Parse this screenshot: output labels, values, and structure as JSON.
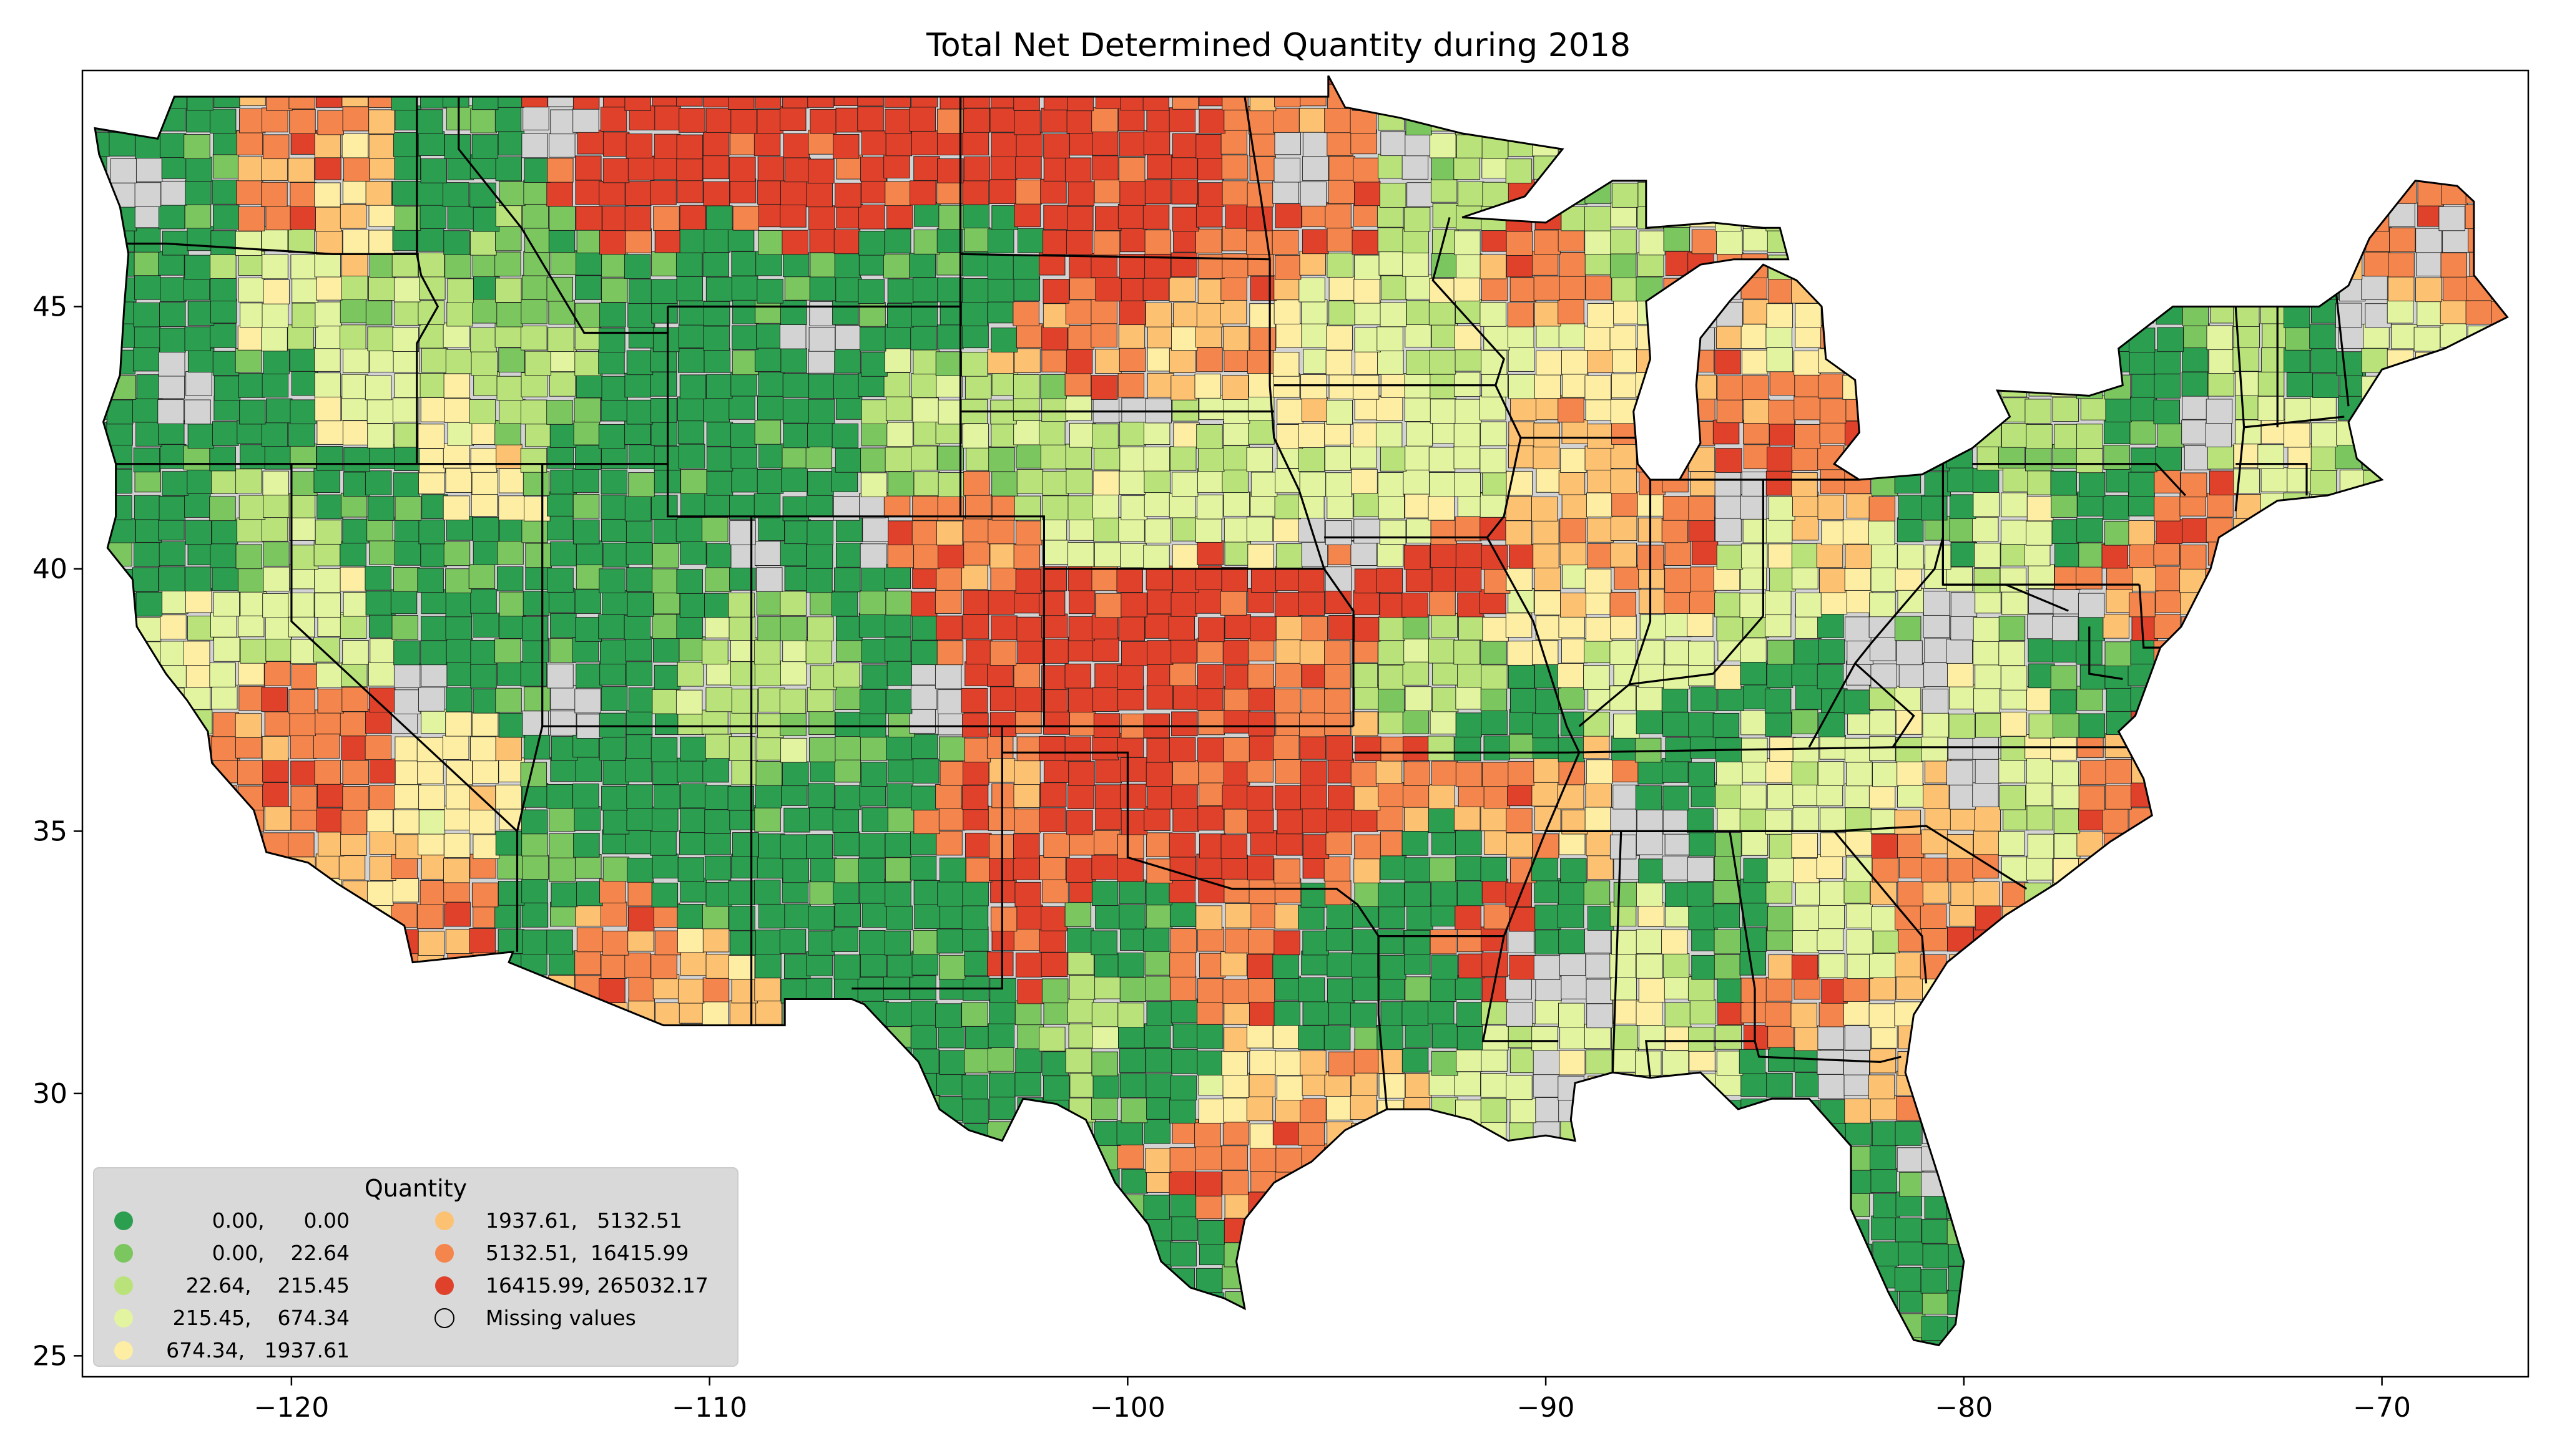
{
  "title": "Total Net Determined Quantity during 2018",
  "map": {
    "lon_range": [
      -125,
      -66.5
    ],
    "lat_range": [
      24.6,
      49.5
    ],
    "x_ticks": [
      {
        "value": -120,
        "label": "−120"
      },
      {
        "value": -110,
        "label": "−110"
      },
      {
        "value": -100,
        "label": "−100"
      },
      {
        "value": -90,
        "label": "−90"
      },
      {
        "value": -80,
        "label": "−80"
      },
      {
        "value": -70,
        "label": "−70"
      }
    ],
    "y_ticks": [
      {
        "value": 25,
        "label": "25"
      },
      {
        "value": 30,
        "label": "30"
      },
      {
        "value": 35,
        "label": "35"
      },
      {
        "value": 40,
        "label": "40"
      },
      {
        "value": 45,
        "label": "45"
      }
    ]
  },
  "colors": {
    "c0": "#2b9e4f",
    "c1": "#7cc660",
    "c2": "#b9e37a",
    "c3": "#e3f4a0",
    "c4": "#fdeea3",
    "c5": "#fdc172",
    "c6": "#f4854c",
    "c7": "#e0412b",
    "missing": "#d3d3d3",
    "border": "#000000"
  },
  "legend": {
    "title": "Quantity",
    "items": [
      {
        "label": "0.00,      0.00",
        "color": "#2b9e4f"
      },
      {
        "label": "0.00,    22.64",
        "color": "#7cc660"
      },
      {
        "label": "22.64,    215.45",
        "color": "#b9e37a"
      },
      {
        "label": "215.45,    674.34",
        "color": "#e3f4a0"
      },
      {
        "label": "674.34,   1937.61",
        "color": "#fdeea3"
      },
      {
        "label": "1937.61,   5132.51",
        "color": "#fdc172"
      },
      {
        "label": "5132.51,  16415.99",
        "color": "#f4854c"
      },
      {
        "label": "16415.99, 265032.17",
        "color": "#e0412b"
      },
      {
        "label": "Missing values",
        "color": "#d3d3d3"
      }
    ]
  }
}
